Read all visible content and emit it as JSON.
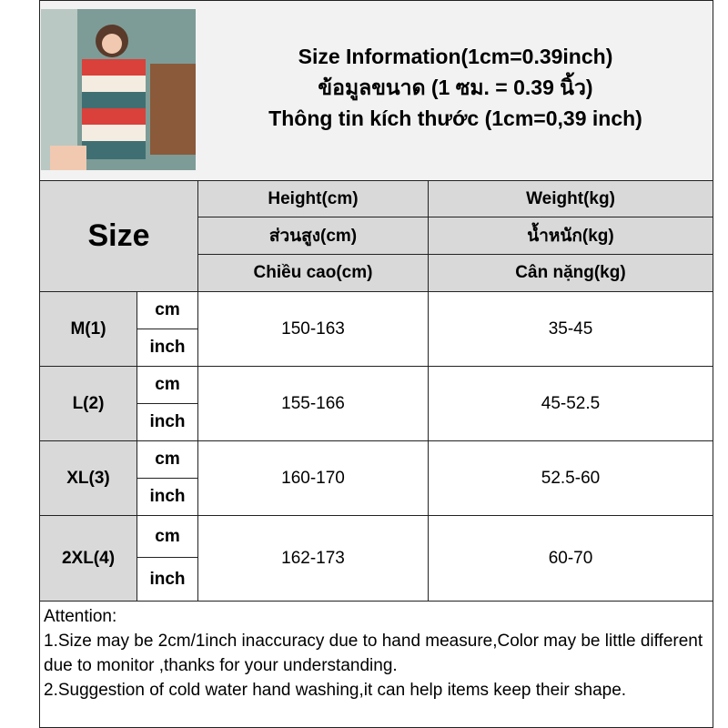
{
  "title": {
    "line1": "Size Information(1cm=0.39inch)",
    "line2": "ข้อมูลขนาด (1 ซม. = 0.39 นิ้ว)",
    "line3": "Thông tin kích thước (1cm=0,39 inch)"
  },
  "photo": {
    "icon": "model-photo-striped-dress",
    "colors": [
      "#d9413a",
      "#f4ece0",
      "#3f6f73"
    ]
  },
  "header": {
    "size_label": "Size",
    "height": [
      "Height(cm)",
      "ส่วนสูง(cm)",
      "Chiều cao(cm)"
    ],
    "weight": [
      "Weight(kg)",
      "น้ำหนัก(kg)",
      "Cân nặng(kg)"
    ]
  },
  "rows": [
    {
      "size": "M(1)",
      "unit1": "cm",
      "unit2": "inch",
      "height": "150-163",
      "weight": "35-45"
    },
    {
      "size": "L(2)",
      "unit1": "cm",
      "unit2": "inch",
      "height": "155-166",
      "weight": "45-52.5"
    },
    {
      "size": "XL(3)",
      "unit1": "cm",
      "unit2": "inch",
      "height": "160-170",
      "weight": "52.5-60"
    },
    {
      "size": "2XL(4)",
      "unit1": "cm",
      "unit2": "inch",
      "height": "162-173",
      "weight": "60-70"
    }
  ],
  "notes": {
    "heading": "Attention:",
    "line1": "1.Size may be 2cm/1inch inaccuracy due to hand measure,Color may be little different due to monitor ,thanks for your understanding.",
    "line2": "2.Suggestion of cold water hand washing,it can help items keep their shape."
  }
}
